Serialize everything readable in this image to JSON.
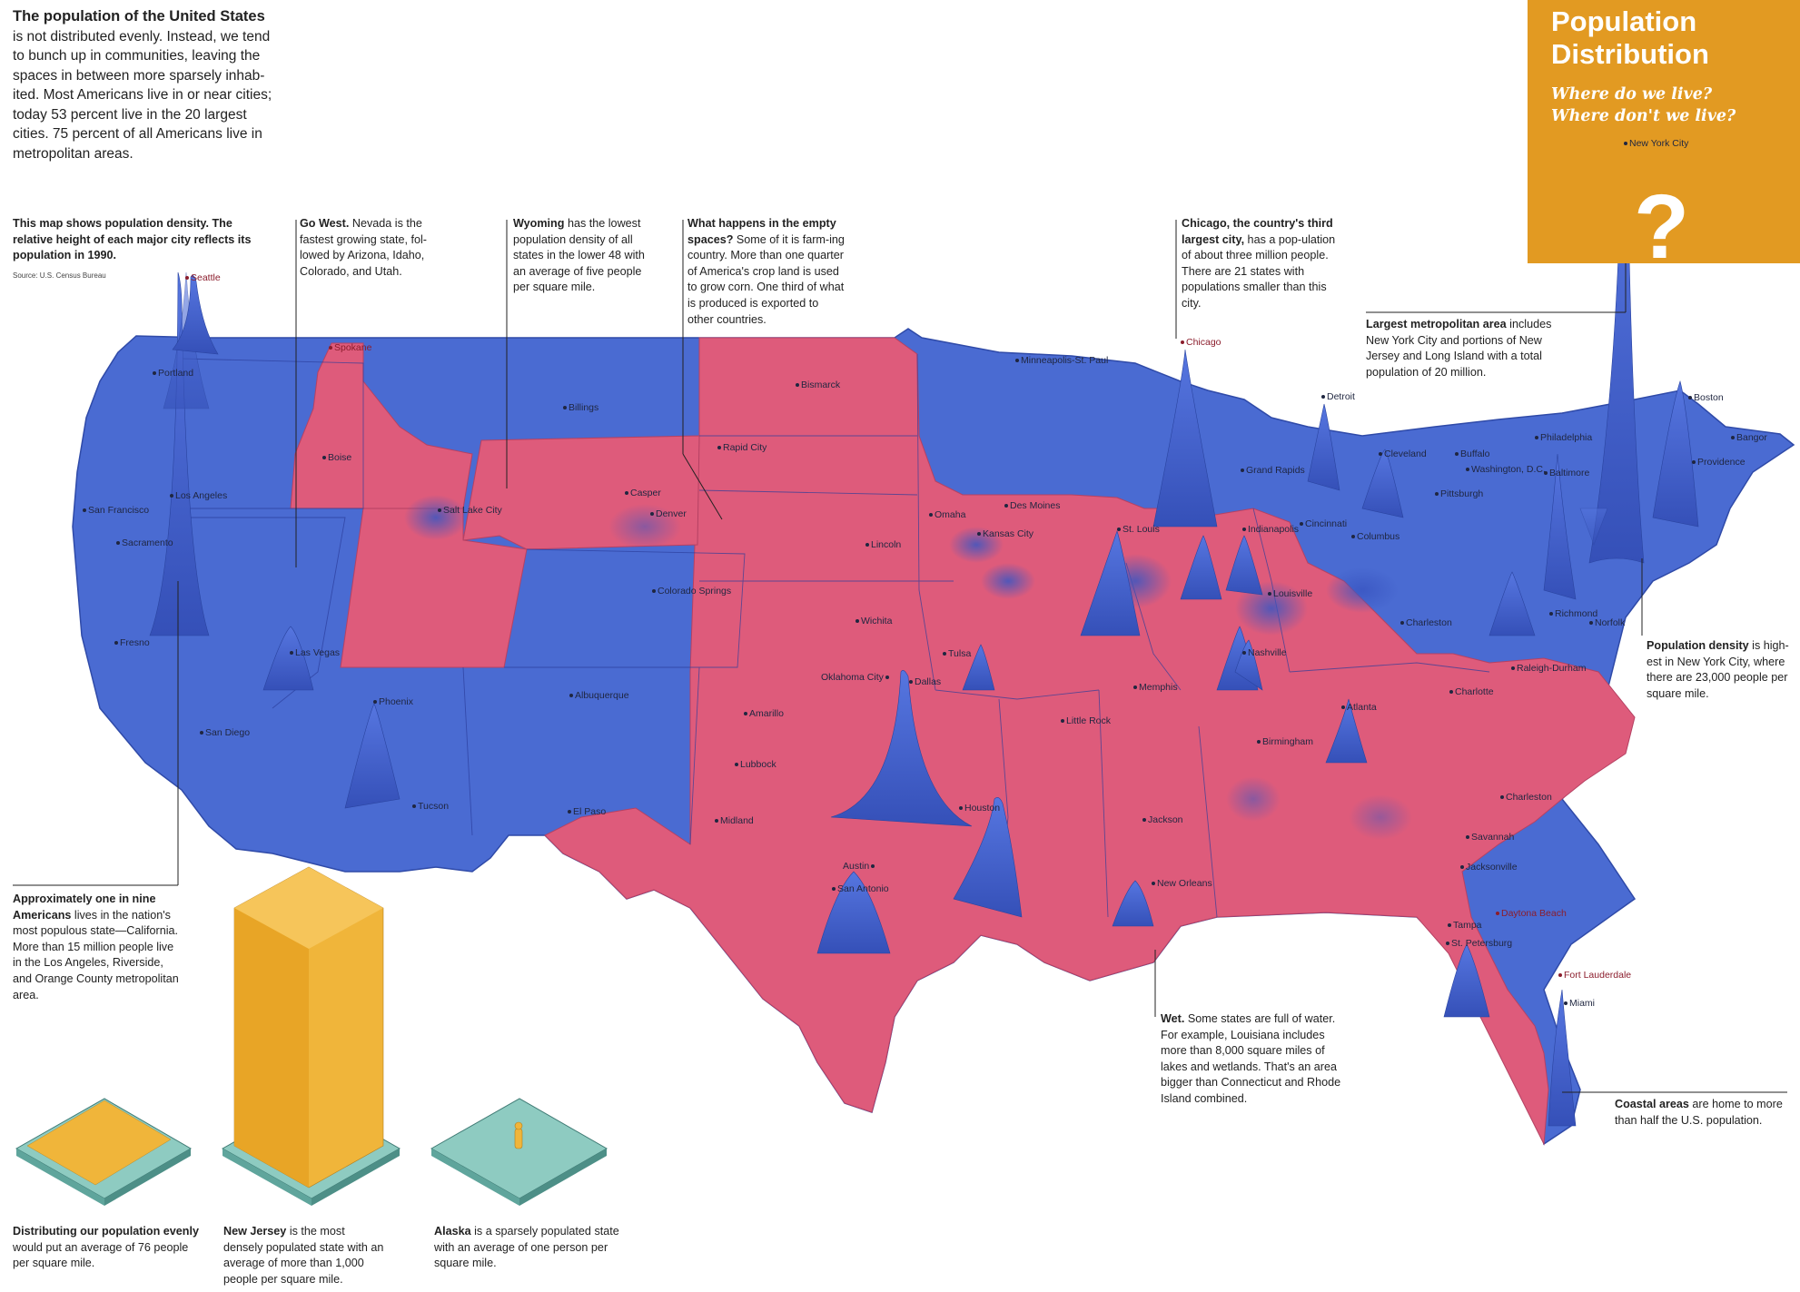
{
  "intro": {
    "lead": "The population of the United States",
    "body": "is not distributed evenly. Instead, we tend to bunch up in communities, leaving the spaces in between more sparsely inhab-ited. Most Americans live in or near cities; today 53 percent live in the 20 largest cities. 75 percent of all Americans live in metropolitan areas."
  },
  "title_box": {
    "title_line1": "Population",
    "title_line2": "Distribution",
    "subtitle_line1": "Where do we live?",
    "subtitle_line2": "Where don't we live?",
    "glyph": "?"
  },
  "notes": {
    "map_info": {
      "bold": "This map shows population density. The relative height of each major city reflects its population in 1990.",
      "source": "Source: U.S. Census Bureau"
    },
    "go_west": {
      "bold": "Go West.",
      "text": " Nevada is the fastest growing state, fol-lowed by Arizona, Idaho, Colorado, and Utah."
    },
    "wyoming": {
      "bold": "Wyoming",
      "text": " has the lowest population density of all states in the lower 48 with an average of five people per square mile."
    },
    "empty_spaces": {
      "bold": "What happens in the empty spaces?",
      "text": " Some of it is farm-ing country. More than one quarter of America's crop land is used to grow corn. One third of what is produced is exported to other countries."
    },
    "chicago": {
      "bold": "Chicago, the country's third largest city,",
      "text": " has a pop-ulation of about three million people. There are 21 states with populations smaller than this city."
    },
    "largest_metro": {
      "bold": "Largest metropolitan area",
      "text": " includes New York City and portions of New Jersey and Long Island with a total population of 20 million."
    },
    "density_nyc": {
      "bold": "Population density",
      "text": " is high-est in New York City, where there are 23,000 people per square mile."
    },
    "california": {
      "bold": "Approximately one in nine Americans",
      "text": " lives in the nation's most populous state—California. More than 15 million people live in the Los Angeles, Riverside, and Orange County metropolitan area."
    },
    "wet": {
      "bold": "Wet.",
      "text": " Some states are full of water. For example, Louisiana includes more than 8,000 square miles of lakes and wetlands. That's an area bigger than Connecticut and Rhode Island combined."
    },
    "coastal": {
      "bold": "Coastal areas",
      "text": " are home to more than half the U.S. population."
    },
    "even": {
      "bold": "Distributing our population evenly",
      "text": " would put an average of 76 people per square mile."
    },
    "new_jersey": {
      "bold": "New Jersey",
      "text": " is the most densely populated state with an average of more than 1,000 people per square mile."
    },
    "alaska": {
      "bold": "Alaska",
      "text": " is a sparsely populated state with an average of one person per square mile."
    }
  },
  "colors": {
    "blue_states": "#4a6bd2",
    "red_states": "#de5b7b",
    "title_bg": "#e29a22",
    "figure_yellow": "#f0b53a",
    "platform": "#8ecbc1"
  },
  "cities": [
    {
      "name": "Seattle",
      "red": true
    },
    {
      "name": "Spokane",
      "red": true
    },
    {
      "name": "Portland",
      "red": false
    },
    {
      "name": "Boise",
      "red": false
    },
    {
      "name": "Billings",
      "red": false
    },
    {
      "name": "Bismarck",
      "red": false
    },
    {
      "name": "Minneapolis-St. Paul",
      "red": false
    },
    {
      "name": "Chicago",
      "red": true
    },
    {
      "name": "Detroit",
      "red": false
    },
    {
      "name": "New York City",
      "red": false
    },
    {
      "name": "Boston",
      "red": false
    },
    {
      "name": "Bangor",
      "red": false
    },
    {
      "name": "Providence",
      "red": false
    },
    {
      "name": "Philadelphia",
      "red": false
    },
    {
      "name": "Buffalo",
      "red": false
    },
    {
      "name": "Cleveland",
      "red": false
    },
    {
      "name": "Washington, D.C.",
      "red": false
    },
    {
      "name": "Baltimore",
      "red": false
    },
    {
      "name": "Pittsburgh",
      "red": false
    },
    {
      "name": "Grand Rapids",
      "red": false
    },
    {
      "name": "San Francisco",
      "red": false
    },
    {
      "name": "Los Angeles",
      "red": false
    },
    {
      "name": "Sacramento",
      "red": false
    },
    {
      "name": "Salt Lake City",
      "red": false
    },
    {
      "name": "Casper",
      "red": false
    },
    {
      "name": "Rapid City",
      "red": false
    },
    {
      "name": "Denver",
      "red": false
    },
    {
      "name": "Omaha",
      "red": false
    },
    {
      "name": "Des Moines",
      "red": false
    },
    {
      "name": "Kansas City",
      "red": false
    },
    {
      "name": "Lincoln",
      "red": false
    },
    {
      "name": "St. Louis",
      "red": false
    },
    {
      "name": "Indianapolis",
      "red": false
    },
    {
      "name": "Cincinnati",
      "red": false
    },
    {
      "name": "Columbus",
      "red": false
    },
    {
      "name": "Louisville",
      "red": false
    },
    {
      "name": "Colorado Springs",
      "red": false
    },
    {
      "name": "Fresno",
      "red": false
    },
    {
      "name": "Las Vegas",
      "red": false
    },
    {
      "name": "Wichita",
      "red": false
    },
    {
      "name": "Tulsa",
      "red": false
    },
    {
      "name": "Charleston",
      "red": false
    },
    {
      "name": "Richmond",
      "red": false
    },
    {
      "name": "Norfolk",
      "red": false
    },
    {
      "name": "Nashville",
      "red": false
    },
    {
      "name": "Raleigh-Durham",
      "red": false
    },
    {
      "name": "Phoenix",
      "red": false
    },
    {
      "name": "Albuquerque",
      "red": false
    },
    {
      "name": "Oklahoma City",
      "red": false
    },
    {
      "name": "Dallas",
      "red": false
    },
    {
      "name": "Memphis",
      "red": false
    },
    {
      "name": "Charlotte",
      "red": false
    },
    {
      "name": "Atlanta",
      "red": false
    },
    {
      "name": "San Diego",
      "red": false
    },
    {
      "name": "Amarillo",
      "red": false
    },
    {
      "name": "Little Rock",
      "red": false
    },
    {
      "name": "Lubbock",
      "red": false
    },
    {
      "name": "Birmingham",
      "red": false
    },
    {
      "name": "Tucson",
      "red": false
    },
    {
      "name": "El Paso",
      "red": false
    },
    {
      "name": "Midland",
      "red": false
    },
    {
      "name": "Houston",
      "red": false
    },
    {
      "name": "Jackson",
      "red": false
    },
    {
      "name": "Charleston",
      "red": false
    },
    {
      "name": "Savannah",
      "red": false
    },
    {
      "name": "Austin",
      "red": false
    },
    {
      "name": "Jacksonville",
      "red": false
    },
    {
      "name": "San Antonio",
      "red": false
    },
    {
      "name": "New Orleans",
      "red": false
    },
    {
      "name": "Daytona Beach",
      "red": true
    },
    {
      "name": "Tampa",
      "red": false
    },
    {
      "name": "St. Petersburg",
      "red": false
    },
    {
      "name": "Fort Lauderdale",
      "red": false
    },
    {
      "name": "Miami",
      "red": false
    }
  ]
}
